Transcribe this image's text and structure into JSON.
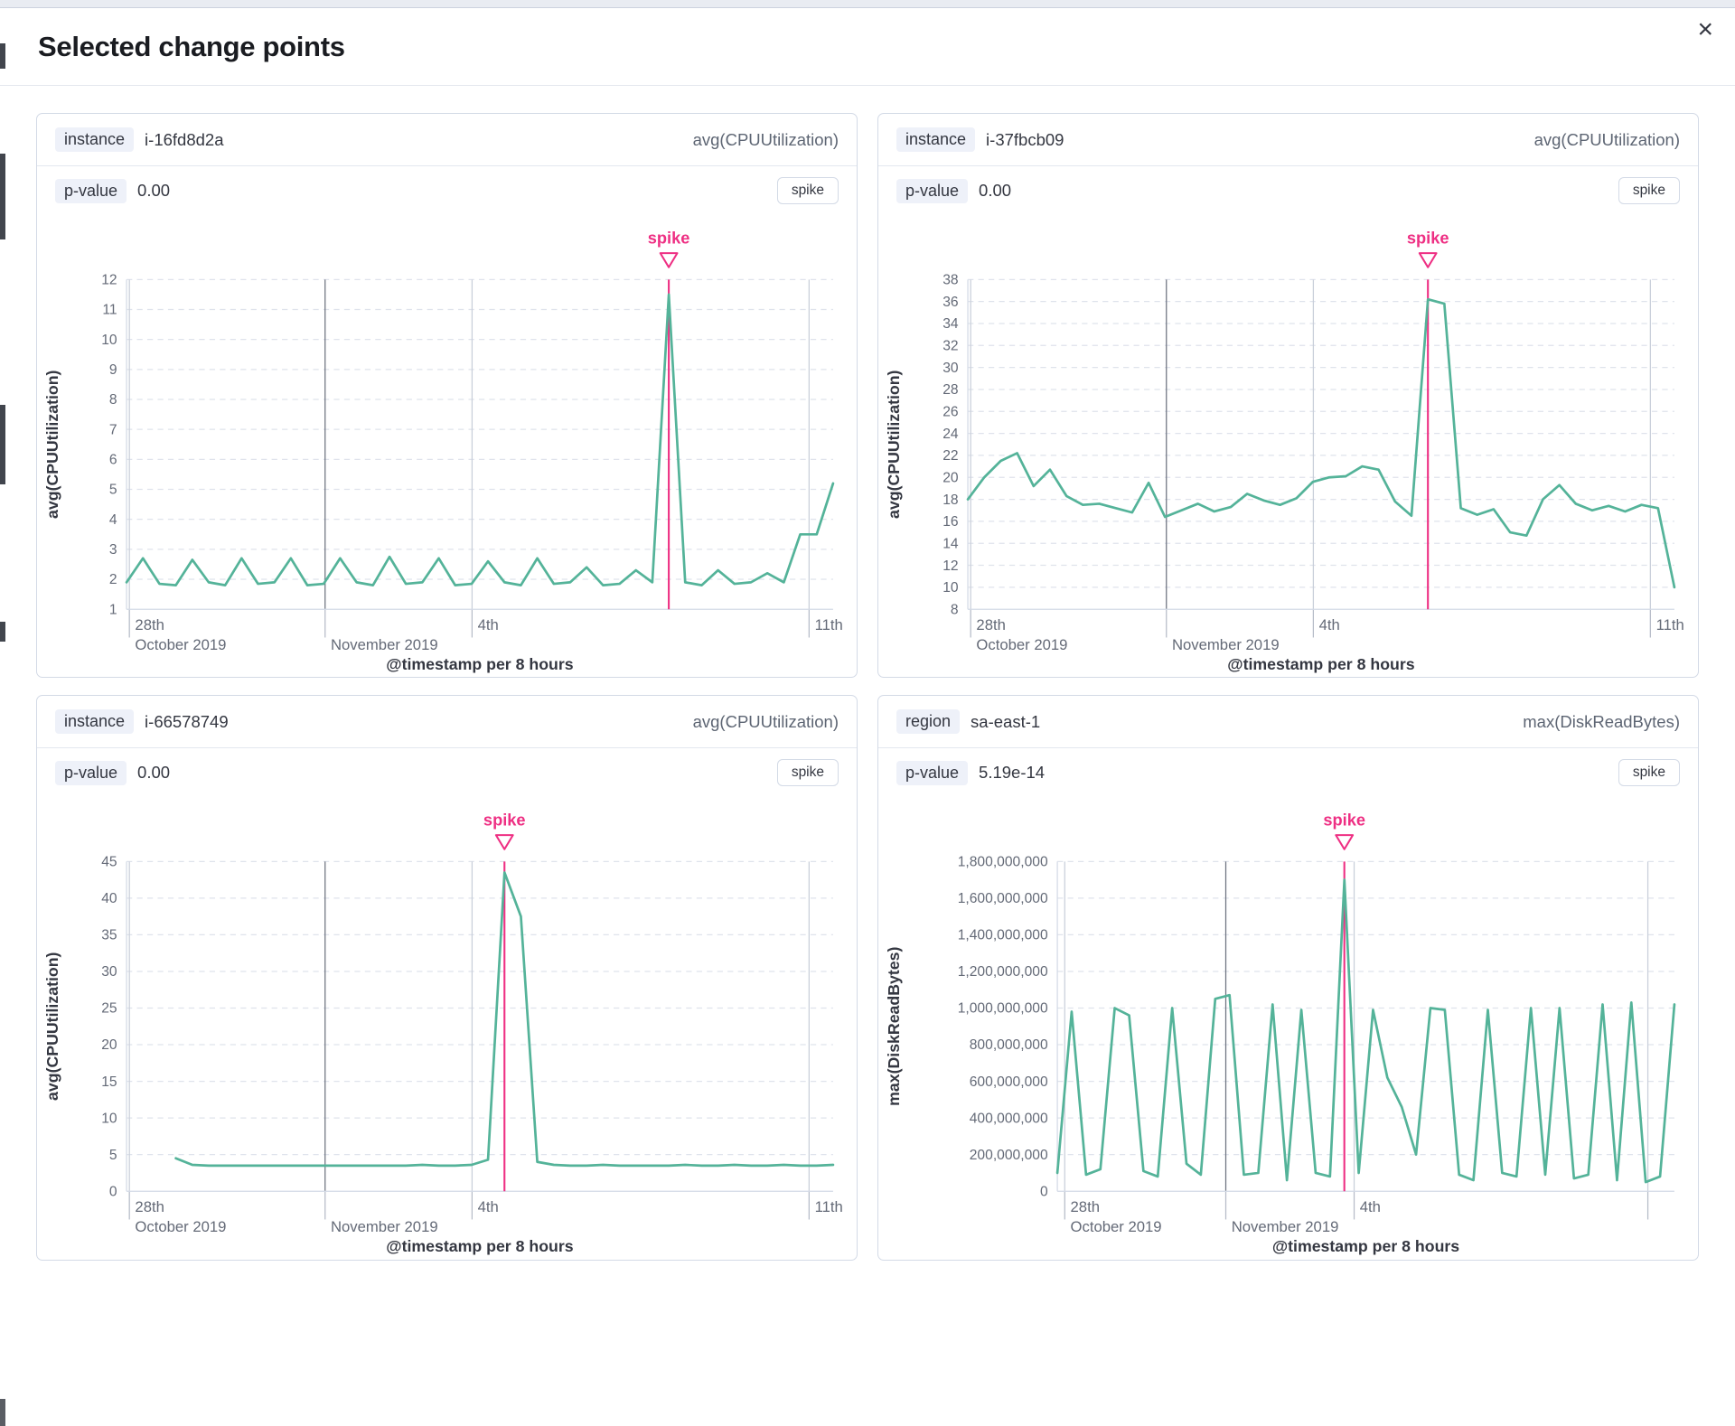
{
  "modal": {
    "title": "Selected change points",
    "close_icon": "×"
  },
  "panels": [
    {
      "badge": "instance",
      "value": "i-16fd8d2a",
      "metric": "avg(CPUUtilization)",
      "p_label": "p-value",
      "p_value": "0.00",
      "spike_button": "spike"
    },
    {
      "badge": "instance",
      "value": "i-37fbcb09",
      "metric": "avg(CPUUtilization)",
      "p_label": "p-value",
      "p_value": "0.00",
      "spike_button": "spike"
    },
    {
      "badge": "instance",
      "value": "i-66578749",
      "metric": "avg(CPUUtilization)",
      "p_label": "p-value",
      "p_value": "0.00",
      "spike_button": "spike"
    },
    {
      "badge": "region",
      "value": "sa-east-1",
      "metric": "max(DiskReadBytes)",
      "p_label": "p-value",
      "p_value": "5.19e-14",
      "spike_button": "spike"
    }
  ],
  "chart_data": [
    {
      "type": "line",
      "title": "instance i-16fd8d2a",
      "ylabel": "avg(CPUUtilization)",
      "xlabel": "@timestamp per 8 hours",
      "annotation_label": "spike",
      "ylim": [
        1,
        12
      ],
      "y_ticks": [
        "12",
        "11",
        "10",
        "9",
        "8",
        "7",
        "6",
        "5",
        "4",
        "3",
        "2",
        "1"
      ],
      "x_ticks": [
        {
          "l1": "28th",
          "l2": "October 2019",
          "frac": 0.004,
          "month": false
        },
        {
          "l1": "",
          "l2": "November 2019",
          "frac": 0.281,
          "month": true
        },
        {
          "l1": "4th",
          "l2": "",
          "frac": 0.489,
          "month": false
        },
        {
          "l1": "11th",
          "l2": "",
          "frac": 0.966,
          "month": false
        }
      ],
      "values": [
        1.9,
        2.7,
        1.85,
        1.8,
        2.65,
        1.9,
        1.8,
        2.7,
        1.85,
        1.9,
        2.7,
        1.8,
        1.85,
        2.7,
        1.9,
        1.8,
        2.75,
        1.85,
        1.9,
        2.7,
        1.8,
        1.85,
        2.6,
        1.9,
        1.8,
        2.7,
        1.85,
        1.9,
        2.4,
        1.8,
        1.85,
        2.3,
        1.9,
        11.5,
        1.9,
        1.8,
        2.3,
        1.85,
        1.9,
        2.2,
        1.9,
        3.5,
        3.5,
        5.2
      ],
      "spike_index": 33
    },
    {
      "type": "line",
      "title": "instance i-37fbcb09",
      "ylabel": "avg(CPUUtilization)",
      "xlabel": "@timestamp per 8 hours",
      "annotation_label": "spike",
      "ylim": [
        8,
        38
      ],
      "y_ticks": [
        "38",
        "36",
        "34",
        "32",
        "30",
        "28",
        "26",
        "24",
        "22",
        "20",
        "18",
        "16",
        "14",
        "12",
        "10",
        "8"
      ],
      "x_ticks": [
        {
          "l1": "28th",
          "l2": "October 2019",
          "frac": 0.004,
          "month": false
        },
        {
          "l1": "",
          "l2": "November 2019",
          "frac": 0.281,
          "month": true
        },
        {
          "l1": "4th",
          "l2": "",
          "frac": 0.489,
          "month": false
        },
        {
          "l1": "11th",
          "l2": "",
          "frac": 0.966,
          "month": false
        }
      ],
      "values": [
        18,
        20,
        21.5,
        22.2,
        19.2,
        20.7,
        18.3,
        17.5,
        17.6,
        17.2,
        16.8,
        19.5,
        16.4,
        17,
        17.6,
        16.9,
        17.3,
        18.5,
        17.9,
        17.5,
        18.1,
        19.6,
        20,
        20.1,
        21,
        20.7,
        17.8,
        16.5,
        36.2,
        35.8,
        17.2,
        16.6,
        17.1,
        15,
        14.7,
        18,
        19.3,
        17.6,
        17,
        17.4,
        16.9,
        17.5,
        17.2,
        10
      ],
      "spike_index": 28
    },
    {
      "type": "line",
      "title": "instance i-66578749",
      "ylabel": "avg(CPUUtilization)",
      "xlabel": "@timestamp per 8 hours",
      "annotation_label": "spike",
      "ylim": [
        0,
        45
      ],
      "y_ticks": [
        "45",
        "40",
        "35",
        "30",
        "25",
        "20",
        "15",
        "10",
        "5",
        "0"
      ],
      "x_ticks": [
        {
          "l1": "28th",
          "l2": "October 2019",
          "frac": 0.004,
          "month": false
        },
        {
          "l1": "",
          "l2": "November 2019",
          "frac": 0.281,
          "month": true
        },
        {
          "l1": "4th",
          "l2": "",
          "frac": 0.489,
          "month": false
        },
        {
          "l1": "11th",
          "l2": "",
          "frac": 0.966,
          "month": false
        }
      ],
      "values": [
        null,
        null,
        null,
        4.5,
        3.6,
        3.5,
        3.5,
        3.5,
        3.5,
        3.5,
        3.5,
        3.5,
        3.5,
        3.5,
        3.5,
        3.5,
        3.5,
        3.5,
        3.6,
        3.5,
        3.5,
        3.6,
        4.3,
        43.5,
        37.5,
        4,
        3.6,
        3.5,
        3.5,
        3.6,
        3.5,
        3.5,
        3.5,
        3.5,
        3.6,
        3.5,
        3.5,
        3.6,
        3.5,
        3.5,
        3.6,
        3.5,
        3.5,
        3.6
      ],
      "spike_index": 23
    },
    {
      "type": "line",
      "title": "region sa-east-1",
      "ylabel": "max(DiskReadBytes)",
      "xlabel": "@timestamp per 8 hours",
      "annotation_label": "spike",
      "ylim": [
        0,
        1800000000
      ],
      "y_ticks": [
        "1,800,000,000",
        "1,600,000,000",
        "1,400,000,000",
        "1,200,000,000",
        "1,000,000,000",
        "800,000,000",
        "600,000,000",
        "400,000,000",
        "200,000,000",
        "0"
      ],
      "x_ticks": [
        {
          "l1": "28th",
          "l2": "October 2019",
          "frac": 0.012,
          "month": false
        },
        {
          "l1": "",
          "l2": "November 2019",
          "frac": 0.273,
          "month": true
        },
        {
          "l1": "4th",
          "l2": "",
          "frac": 0.481,
          "month": false
        },
        {
          "l1": "",
          "l2": "",
          "frac": 0.957,
          "month": false
        }
      ],
      "values": [
        100000000,
        980000000,
        90000000,
        120000000,
        1000000000,
        960000000,
        110000000,
        80000000,
        1000000000,
        150000000,
        90000000,
        1050000000,
        1070000000,
        90000000,
        100000000,
        1020000000,
        60000000,
        990000000,
        100000000,
        80000000,
        1700000000,
        100000000,
        990000000,
        620000000,
        460000000,
        200000000,
        1000000000,
        990000000,
        90000000,
        60000000,
        990000000,
        100000000,
        80000000,
        1000000000,
        90000000,
        1000000000,
        70000000,
        90000000,
        1020000000,
        60000000,
        1030000000,
        50000000,
        80000000,
        1020000000
      ],
      "spike_index": 20
    }
  ],
  "colors": {
    "line": "#54b399",
    "accent": "#ee2f83",
    "grid_dash": "#dfe3ec",
    "grid_vertical": "#c9cfda",
    "grid_month": "#6d7380",
    "axis": "#d3dae6",
    "tick_stub": "#b6bcc8",
    "tick_text": "#646a77",
    "axis_title_text": "#343741"
  }
}
